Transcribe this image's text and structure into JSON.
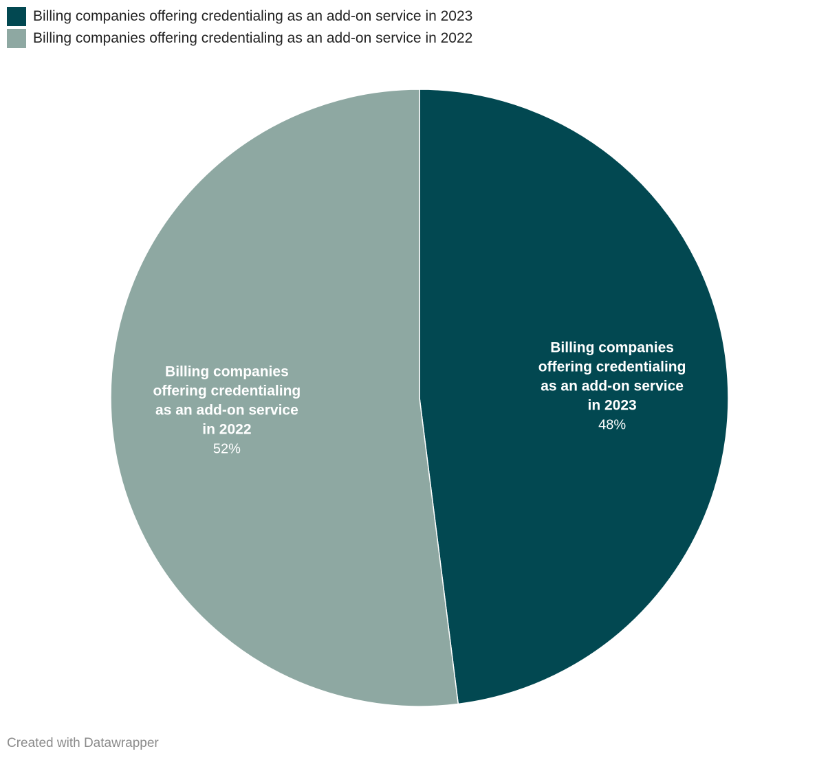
{
  "chart_data": {
    "type": "pie",
    "slices": [
      {
        "name": "Billing companies offering credentialing as an add-on service in 2023",
        "value": 48,
        "value_label": "48%",
        "label_lines": [
          "Billing companies",
          "offering credentialing",
          "as an add-on service",
          "in 2023"
        ],
        "color": "#024851"
      },
      {
        "name": "Billing companies offering credentialing as an add-on service in 2022",
        "value": 52,
        "value_label": "52%",
        "label_lines": [
          "Billing companies",
          "offering credentialing",
          "as an add-on service",
          "in 2022"
        ],
        "color": "#8ea8a2"
      }
    ],
    "legend_position": "top-left",
    "start": "12 o'clock, clockwise"
  },
  "legend": [
    {
      "label": "Billing companies offering credentialing as an add-on service in 2023",
      "color": "#024851"
    },
    {
      "label": "Billing companies offering credentialing as an add-on service in 2022",
      "color": "#8ea8a2"
    }
  ],
  "credit": "Created with Datawrapper"
}
